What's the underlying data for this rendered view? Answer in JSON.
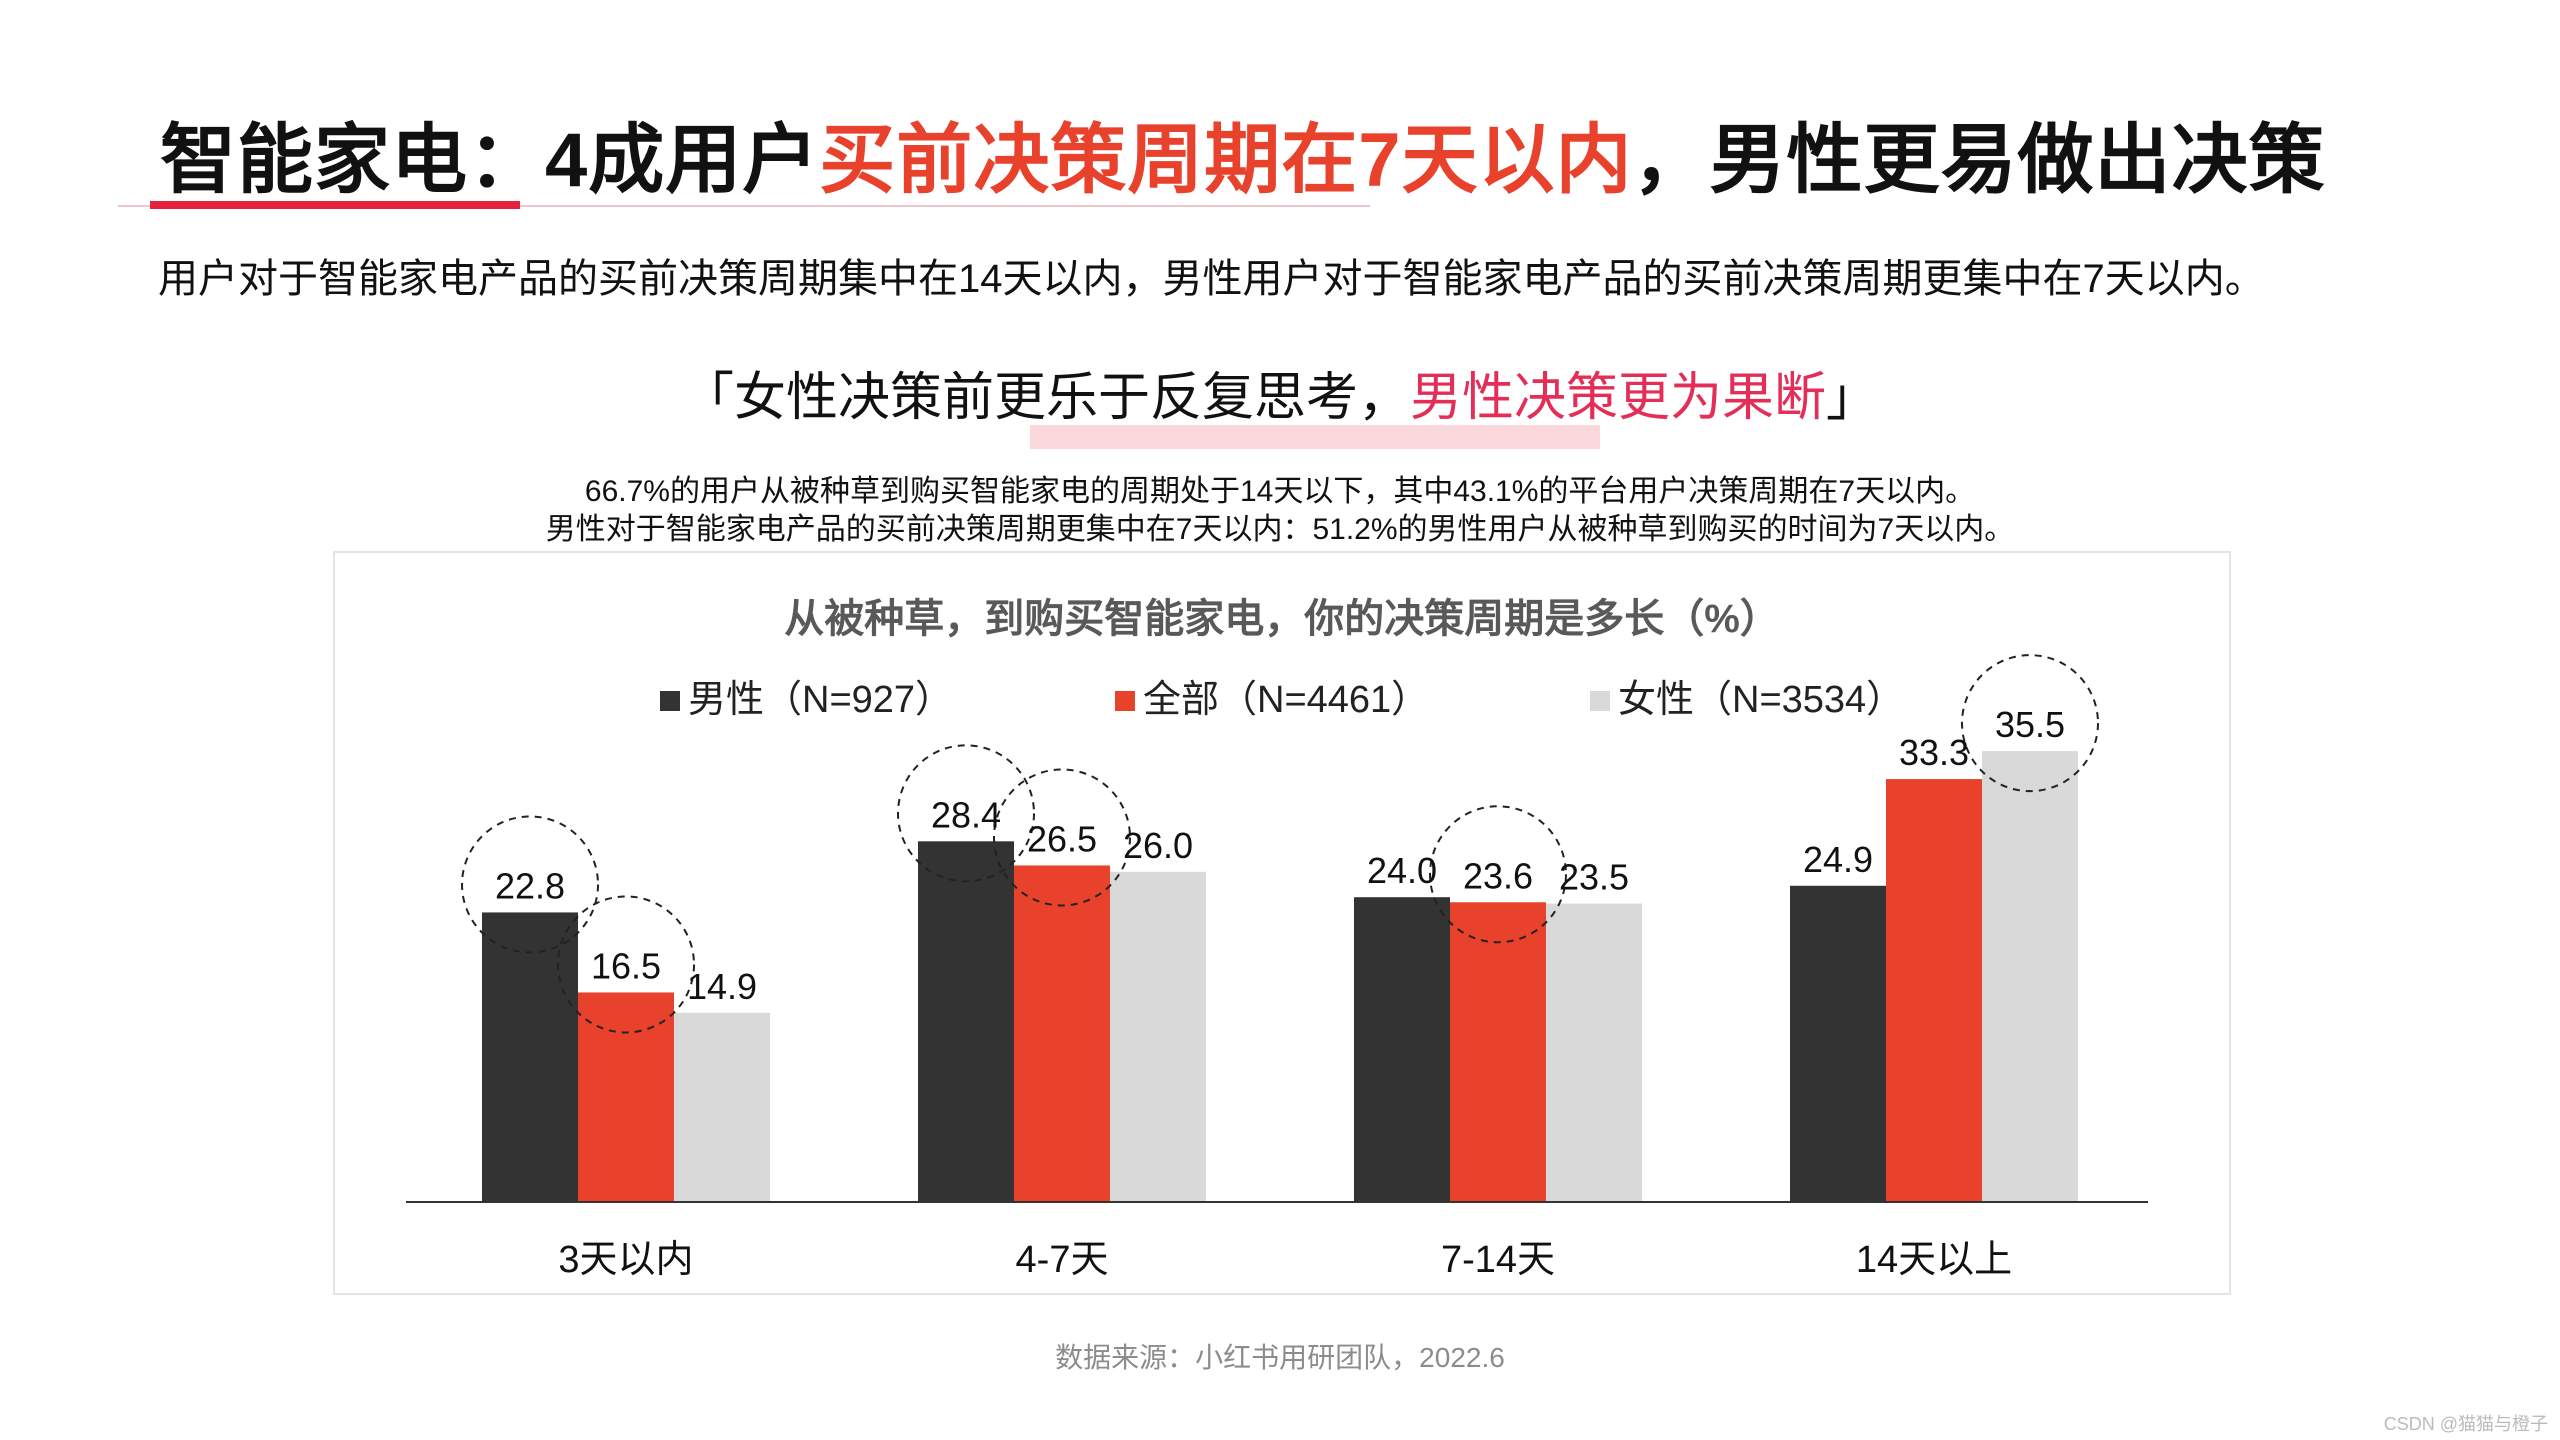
{
  "title": {
    "part1": "智能家电：4成用户",
    "highlight": "买前决策周期在7天以内",
    "part2": "，男性更易做出决策"
  },
  "subtitle": "用户对于智能家电产品的买前决策周期集中在14天以内，男性用户对于智能家电产品的买前决策周期更集中在7天以内。",
  "quote": {
    "open": "「",
    "normal": "女性决策前更乐于反复思考，",
    "highlight": "男性决策更为果断",
    "close": "」"
  },
  "notes": {
    "line1": "66.7%的用户从被种草到购买智能家电的周期处于14天以下，其中43.1%的平台用户决策周期在7天以内。",
    "line2": "男性对于智能家电产品的买前决策周期更集中在7天以内：51.2%的男性用户从被种草到购买的时间为7天以内。"
  },
  "chart_data": {
    "type": "bar",
    "title": "从被种草，到购买智能家电，你的决策周期是多长（%）",
    "categories": [
      "3天以内",
      "4-7天",
      "7-14天",
      "14天以上"
    ],
    "series": [
      {
        "name": "男性（N=927）",
        "color": "#333333",
        "values": [
          22.8,
          28.4,
          24.0,
          24.9
        ]
      },
      {
        "name": "全部（N=4461）",
        "color": "#e8412c",
        "values": [
          16.5,
          26.5,
          23.6,
          33.3
        ]
      },
      {
        "name": "女性（N=3534）",
        "color": "#d9d9d9",
        "values": [
          14.9,
          26.0,
          23.5,
          35.5
        ]
      }
    ],
    "highlighted": [
      {
        "category": 0,
        "series": 0
      },
      {
        "category": 0,
        "series": 1
      },
      {
        "category": 1,
        "series": 0
      },
      {
        "category": 1,
        "series": 1
      },
      {
        "category": 2,
        "series": 1
      },
      {
        "category": 3,
        "series": 2
      }
    ],
    "ylim": [
      0,
      40
    ],
    "xlabel": "",
    "ylabel": "",
    "grid": false,
    "legend": "top-center"
  },
  "source": "数据来源：小红书用研团队，2022.6",
  "watermark": "CSDN @猫猫与橙子"
}
